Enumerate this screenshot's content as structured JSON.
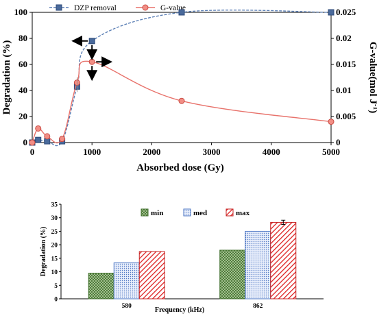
{
  "chart_data": [
    {
      "type": "line",
      "xlabel": "Absorbed dose (Gy)",
      "ylabel": "Degradation (%)",
      "y2label": "G-value(mol J",
      "y2label_sup": "-1",
      "y2label_end": ")",
      "xlim": [
        0,
        5000
      ],
      "ylim": [
        0,
        100
      ],
      "y2lim": [
        0,
        0.025
      ],
      "xticks": [
        "0",
        "1000",
        "2000",
        "3000",
        "4000",
        "5000"
      ],
      "yticks": [
        "0",
        "20",
        "40",
        "60",
        "80",
        "100"
      ],
      "y2ticks": [
        "0",
        "0.005",
        "0.01",
        "0.015",
        "0.02",
        "0.025"
      ],
      "legend_position": "top",
      "series": [
        {
          "name": "DZP removal",
          "axis": "left",
          "color": "#5b7fb5",
          "marker": "square",
          "line": "dashed",
          "x": [
            0,
            100,
            250,
            500,
            750,
            1000,
            2500,
            5000
          ],
          "y": [
            0,
            2,
            1,
            1,
            43,
            78,
            100,
            100
          ]
        },
        {
          "name": "G-value",
          "axis": "right",
          "color": "#e8726b",
          "marker": "circle",
          "line": "solid",
          "x": [
            0,
            100,
            250,
            500,
            750,
            1000,
            2500,
            5000
          ],
          "y": [
            0,
            0.0027,
            0.0012,
            0.0007,
            0.0115,
            0.0155,
            0.008,
            0.004
          ]
        }
      ],
      "arrows": [
        {
          "at_series": "DZP removal",
          "x": 1000,
          "direction": "left"
        },
        {
          "at_series": "DZP removal",
          "x": 1000,
          "direction": "down"
        },
        {
          "at_series": "G-value",
          "x": 1000,
          "direction": "right"
        },
        {
          "at_series": "G-value",
          "x": 1000,
          "direction": "down"
        }
      ]
    },
    {
      "type": "bar",
      "xlabel": "Frequency (kHz)",
      "ylabel": "Degradation (%)",
      "ylim": [
        0,
        35
      ],
      "yticks": [
        "0",
        "5",
        "10",
        "15",
        "20",
        "25",
        "30",
        "35"
      ],
      "categories": [
        "580",
        "862"
      ],
      "legend_position": "top-center",
      "series": [
        {
          "name": "min",
          "values": [
            9.5,
            18
          ],
          "color": "#6e9b53",
          "pattern": "crosshatch"
        },
        {
          "name": "med",
          "values": [
            13.3,
            25
          ],
          "color": "#7d9fd6",
          "pattern": "dots"
        },
        {
          "name": "max",
          "values": [
            17.5,
            28.3
          ],
          "color": "#e23a3a",
          "pattern": "diagonal"
        }
      ],
      "error_bars": {
        "series": "max",
        "category": "862",
        "value": 0.8
      }
    }
  ]
}
